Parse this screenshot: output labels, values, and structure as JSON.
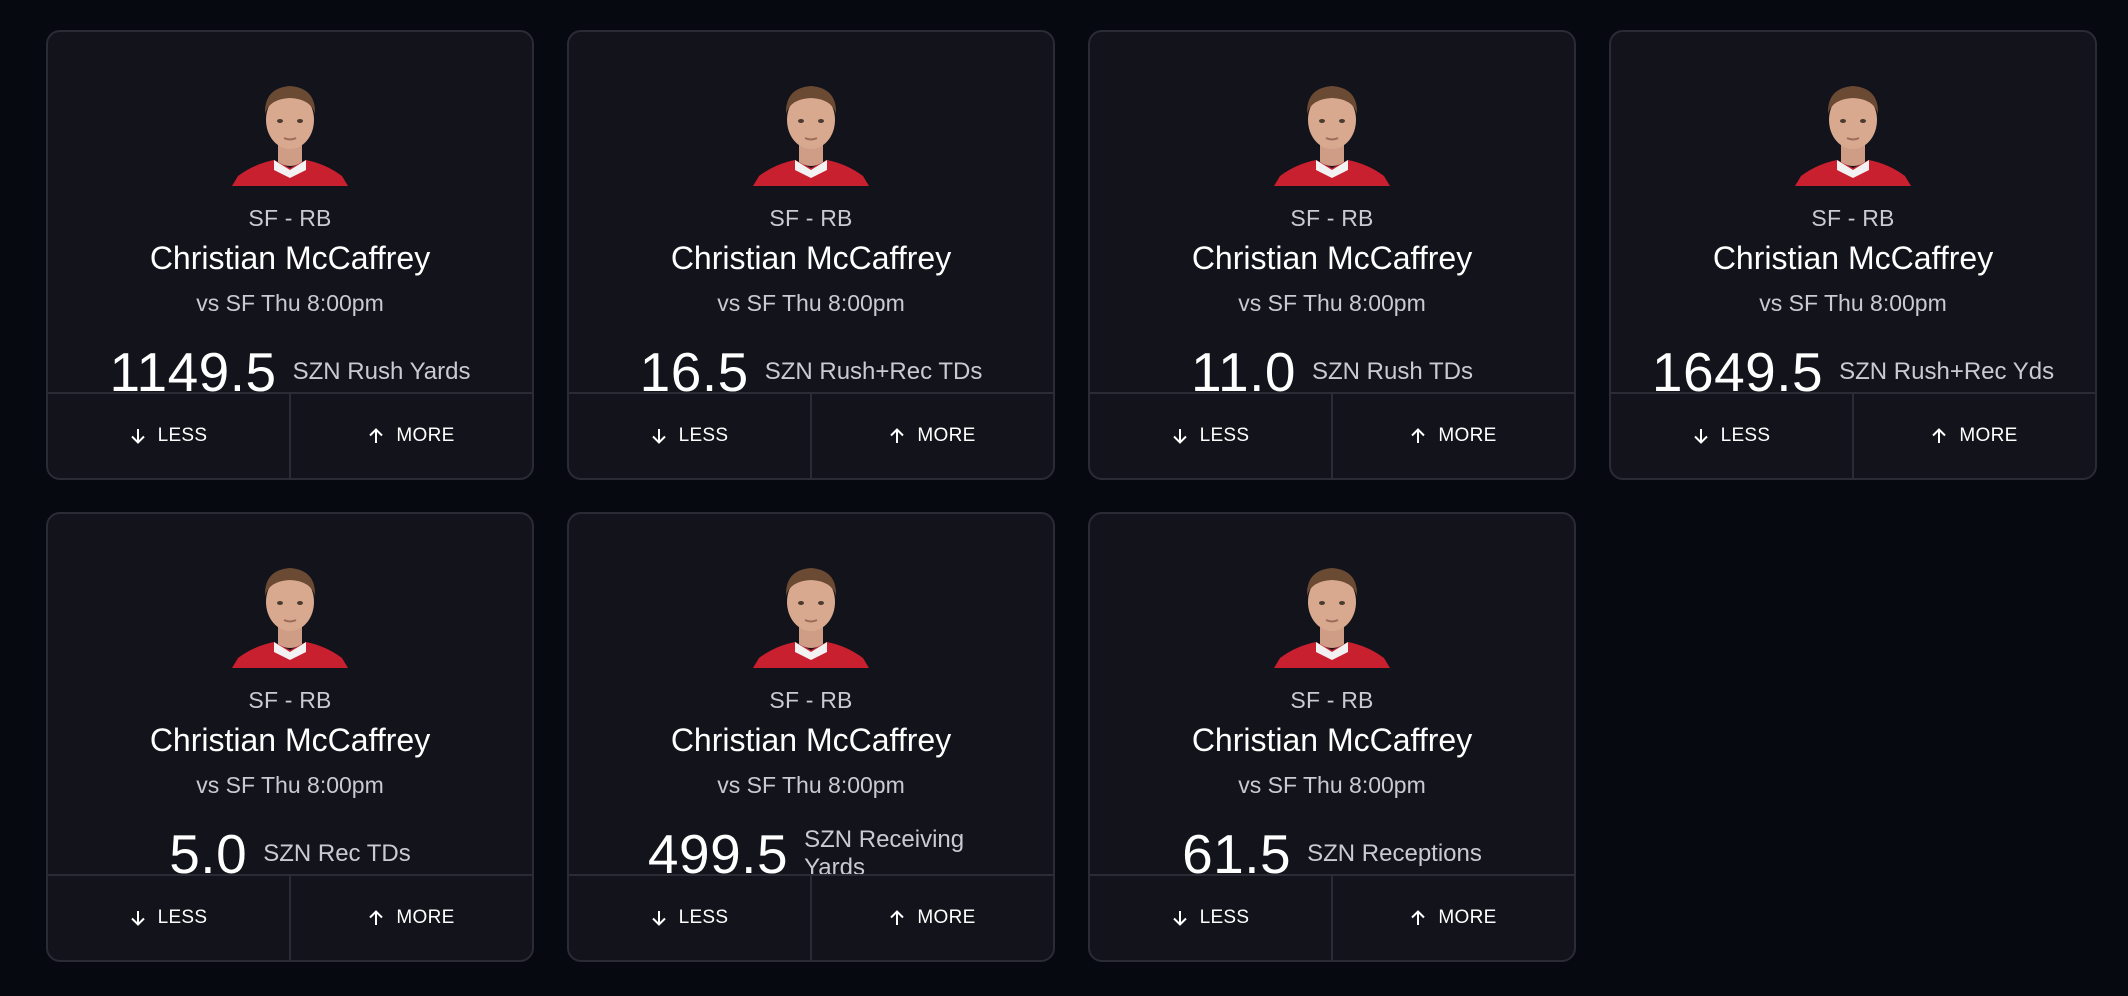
{
  "cards": [
    {
      "team_pos": "SF - RB",
      "name": "Christian McCaffrey",
      "matchup": "vs SF Thu 8:00pm",
      "line": "1149.5",
      "stat": "SZN Rush Yards",
      "less": "LESS",
      "more": "MORE"
    },
    {
      "team_pos": "SF - RB",
      "name": "Christian McCaffrey",
      "matchup": "vs SF Thu 8:00pm",
      "line": "16.5",
      "stat": "SZN Rush+Rec TDs",
      "less": "LESS",
      "more": "MORE"
    },
    {
      "team_pos": "SF - RB",
      "name": "Christian McCaffrey",
      "matchup": "vs SF Thu 8:00pm",
      "line": "11.0",
      "stat": "SZN Rush TDs",
      "less": "LESS",
      "more": "MORE"
    },
    {
      "team_pos": "SF - RB",
      "name": "Christian McCaffrey",
      "matchup": "vs SF Thu 8:00pm",
      "line": "1649.5",
      "stat": "SZN Rush+Rec Yds",
      "less": "LESS",
      "more": "MORE"
    },
    {
      "team_pos": "SF - RB",
      "name": "Christian McCaffrey",
      "matchup": "vs SF Thu 8:00pm",
      "line": "5.0",
      "stat": "SZN Rec TDs",
      "less": "LESS",
      "more": "MORE"
    },
    {
      "team_pos": "SF - RB",
      "name": "Christian McCaffrey",
      "matchup": "vs SF Thu 8:00pm",
      "line": "499.5",
      "stat": "SZN Receiving Yards",
      "less": "LESS",
      "more": "MORE"
    },
    {
      "team_pos": "SF - RB",
      "name": "Christian McCaffrey",
      "matchup": "vs SF Thu 8:00pm",
      "line": "61.5",
      "stat": "SZN Receptions",
      "less": "LESS",
      "more": "MORE"
    }
  ],
  "icons": {
    "less": "arrow-down-icon",
    "more": "arrow-up-icon",
    "avatar": "player-headshot"
  },
  "colors": {
    "background": "#070911",
    "card": "#13131b",
    "border": "#2a2b35",
    "jersey": "#c8202f"
  }
}
